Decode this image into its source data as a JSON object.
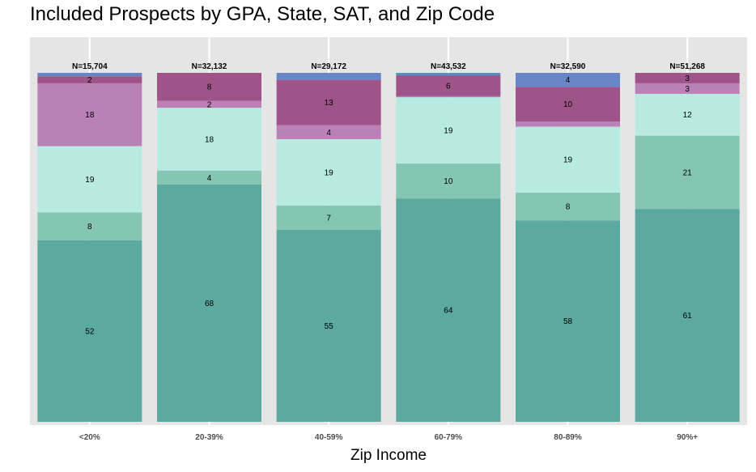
{
  "chart_data": {
    "type": "bar",
    "stacked": true,
    "title": "Included Prospects by GPA, State, SAT, and Zip Code",
    "xlabel": "Zip Income",
    "ylabel": "",
    "ylim": [
      0,
      100
    ],
    "grid": true,
    "categories": [
      "<20%",
      "20-39%",
      "40-59%",
      "60-79%",
      "80-89%",
      "90%+"
    ],
    "totals": [
      "N=15,704",
      "N=32,132",
      "N=29,172",
      "N=43,532",
      "N=32,590",
      "N=51,268"
    ],
    "stack_order_bottom_to_top": true,
    "series": [
      {
        "color": "#5ca99f",
        "values": [
          52,
          68,
          55,
          64,
          58,
          61
        ]
      },
      {
        "color": "#85c5b3",
        "values": [
          8,
          4,
          7,
          10,
          8,
          21
        ]
      },
      {
        "color": "#b7ebe2",
        "values": [
          19,
          18,
          19,
          19,
          19,
          12
        ]
      },
      {
        "color": "#bb80b6",
        "values": [
          18,
          2,
          4,
          0.3,
          1.5,
          3
        ]
      },
      {
        "color": "#9f5489",
        "values": [
          2,
          8,
          13,
          6,
          10,
          3
        ]
      },
      {
        "color": "#6886c7",
        "values": [
          1,
          0,
          2,
          0.7,
          4,
          0
        ]
      }
    ],
    "segment_labels": [
      [
        "52",
        "68",
        "55",
        "64",
        "58",
        "61"
      ],
      [
        "8",
        "4",
        "7",
        "10",
        "8",
        "21"
      ],
      [
        "19",
        "18",
        "19",
        "19",
        "19",
        "12"
      ],
      [
        "18",
        "2",
        "4",
        "",
        "",
        "3"
      ],
      [
        "2",
        "8",
        "13",
        "6",
        "10",
        "3"
      ],
      [
        "",
        "",
        "",
        "",
        "4",
        ""
      ]
    ],
    "panel_background": "#e5e5e5",
    "gridline_color": "#ffffff"
  }
}
